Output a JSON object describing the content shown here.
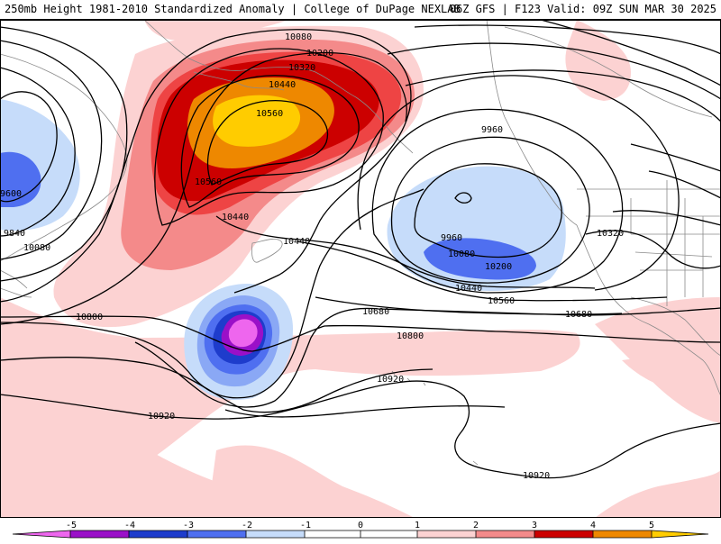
{
  "header": {
    "title": "250mb Height 1981-2010 Standardized Anomaly | College of DuPage NEXLAB",
    "run_info": "06Z GFS | F123 Valid: 09Z SUN MAR 30 2025"
  },
  "contour_labels": {
    "c10080_top": "10080",
    "c10200_top": "10200",
    "c10320_top": "10320",
    "c10440_top": "10440",
    "c10560_top": "10560",
    "c10560_mid": "10560",
    "c10440_mid": "10440",
    "c10440_mid2": "10440",
    "c9600_left": "9600",
    "c9840_left": "9840",
    "c10080_left": "10080",
    "c10800_left": "10800",
    "c10680_mid": "10680",
    "c10800_mid": "10800",
    "c10920_mid": "10920",
    "c10920_left": "10920",
    "c10920_bottom": "10920",
    "c10680_right": "10680",
    "c9960_ne": "9960",
    "c9960_low": "9960",
    "c10080_low": "10080",
    "c10200_low": "10200",
    "c10440_low": "10440",
    "c10560_low": "10560",
    "c10320_east": "10320"
  },
  "colorbar": {
    "ticks": [
      "-5",
      "-4",
      "-3",
      "-2",
      "-1",
      "0",
      "1",
      "2",
      "3",
      "4",
      "5"
    ],
    "colors": {
      "neg5": "#ee66ee",
      "neg4": "#9a10c8",
      "neg3": "#1e3ccc",
      "neg2": "#4f6ff0",
      "neg1_5": "#8aa8f5",
      "neg1": "#c6dcfa",
      "zero": "#ffffff",
      "pos1": "#fcd2d2",
      "pos2": "#f48a8a",
      "pos2_5": "#ee4444",
      "pos3": "#cc0000",
      "pos4": "#ee8800",
      "pos5": "#ffcc00"
    }
  }
}
